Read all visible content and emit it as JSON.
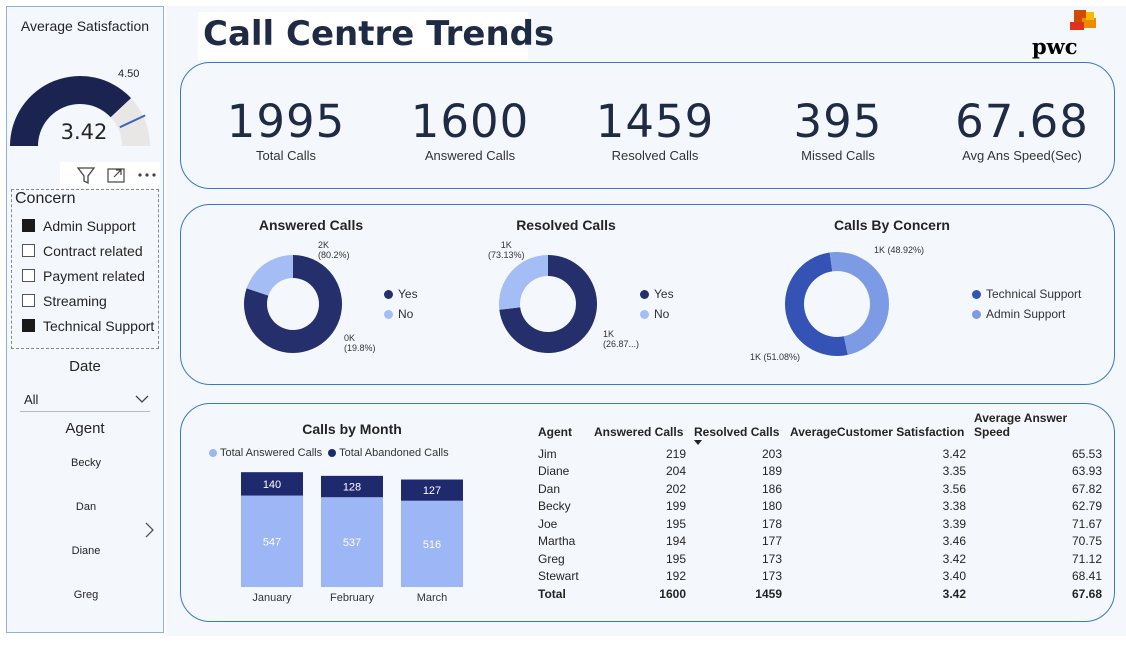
{
  "sidebar": {
    "gauge": {
      "title": "Average Satisfaction",
      "value": "3.42",
      "target": "4.50",
      "fraction": 0.76,
      "fill_color": "#1b2450",
      "track_color": "#e9e7e6",
      "target_color": "#3a66b8"
    },
    "visual_header_icons": [
      "filter-icon",
      "focus-mode-icon",
      "more-options-icon"
    ],
    "concern": {
      "title": "Concern",
      "items": [
        {
          "label": "Admin Support",
          "checked": true
        },
        {
          "label": "Contract related",
          "checked": false
        },
        {
          "label": "Payment related",
          "checked": false
        },
        {
          "label": "Streaming",
          "checked": false
        },
        {
          "label": "Technical Support",
          "checked": true
        }
      ]
    },
    "date": {
      "title": "Date",
      "selected": "All"
    },
    "agent": {
      "title": "Agent",
      "items": [
        "Becky",
        "Dan",
        "Diane",
        "Greg"
      ]
    }
  },
  "header": {
    "title": "Call Centre Trends",
    "logo_text": "pwc"
  },
  "kpis": [
    {
      "value": "1995",
      "label": "Total Calls"
    },
    {
      "value": "1600",
      "label": "Answered Calls"
    },
    {
      "value": "1459",
      "label": "Resolved Calls"
    },
    {
      "value": "395",
      "label": "Missed Calls"
    },
    {
      "value": "67.68",
      "label": "Avg Ans Speed(Sec)"
    }
  ],
  "donuts": {
    "answered": {
      "title": "Answered Calls",
      "legend": [
        "Yes",
        "No"
      ],
      "label_yes": [
        "2K",
        "(80.2%)"
      ],
      "label_no": [
        "0K",
        "(19.8%)"
      ]
    },
    "resolved": {
      "title": "Resolved Calls",
      "legend": [
        "Yes",
        "No"
      ],
      "label_yes": [
        "1K",
        "(73.13%)"
      ],
      "label_no": [
        "1K",
        "(26.87...)"
      ]
    },
    "concern": {
      "title": "Calls By Concern",
      "legend": [
        "Technical Support",
        "Admin Support"
      ],
      "label_admin": "1K (48.92%)",
      "label_tech": "1K (51.08%)"
    }
  },
  "month_chart": {
    "title": "Calls by Month",
    "legend": [
      "Total Answered Calls",
      "Total Abandoned Calls"
    ]
  },
  "chart_data": [
    {
      "type": "pie",
      "title": "Answered Calls",
      "categories": [
        "Yes",
        "No"
      ],
      "values": [
        80.2,
        19.8
      ],
      "colors": [
        "#252f6b",
        "#a5bdf5"
      ]
    },
    {
      "type": "pie",
      "title": "Resolved Calls",
      "categories": [
        "Yes",
        "No"
      ],
      "values": [
        73.13,
        26.87
      ],
      "colors": [
        "#252f6b",
        "#a5bdf5"
      ]
    },
    {
      "type": "pie",
      "title": "Calls By Concern",
      "categories": [
        "Technical Support",
        "Admin Support"
      ],
      "values": [
        51.08,
        48.92
      ],
      "colors": [
        "#3453b5",
        "#7d9ae4"
      ]
    },
    {
      "type": "bar",
      "title": "Calls by Month",
      "categories": [
        "January",
        "February",
        "March"
      ],
      "series": [
        {
          "name": "Total Answered Calls",
          "values": [
            547,
            537,
            516
          ],
          "color": "#9db6f5"
        },
        {
          "name": "Total Abandoned Calls",
          "values": [
            140,
            128,
            127
          ],
          "color": "#1f2a6e"
        }
      ],
      "stacked": true
    }
  ],
  "table": {
    "headers": [
      "Agent",
      "Answered Calls",
      "Resolved Calls",
      "AverageCustomer Satisfaction",
      "Average Answer Speed"
    ],
    "rows": [
      [
        "Jim",
        "219",
        "203",
        "3.42",
        "65.53"
      ],
      [
        "Diane",
        "204",
        "189",
        "3.35",
        "63.93"
      ],
      [
        "Dan",
        "202",
        "186",
        "3.56",
        "67.82"
      ],
      [
        "Becky",
        "199",
        "180",
        "3.38",
        "62.79"
      ],
      [
        "Joe",
        "195",
        "178",
        "3.39",
        "71.67"
      ],
      [
        "Martha",
        "194",
        "177",
        "3.46",
        "70.75"
      ],
      [
        "Greg",
        "195",
        "173",
        "3.42",
        "71.12"
      ],
      [
        "Stewart",
        "192",
        "173",
        "3.40",
        "68.41"
      ]
    ],
    "total": [
      "Total",
      "1600",
      "1459",
      "3.42",
      "67.68"
    ]
  }
}
